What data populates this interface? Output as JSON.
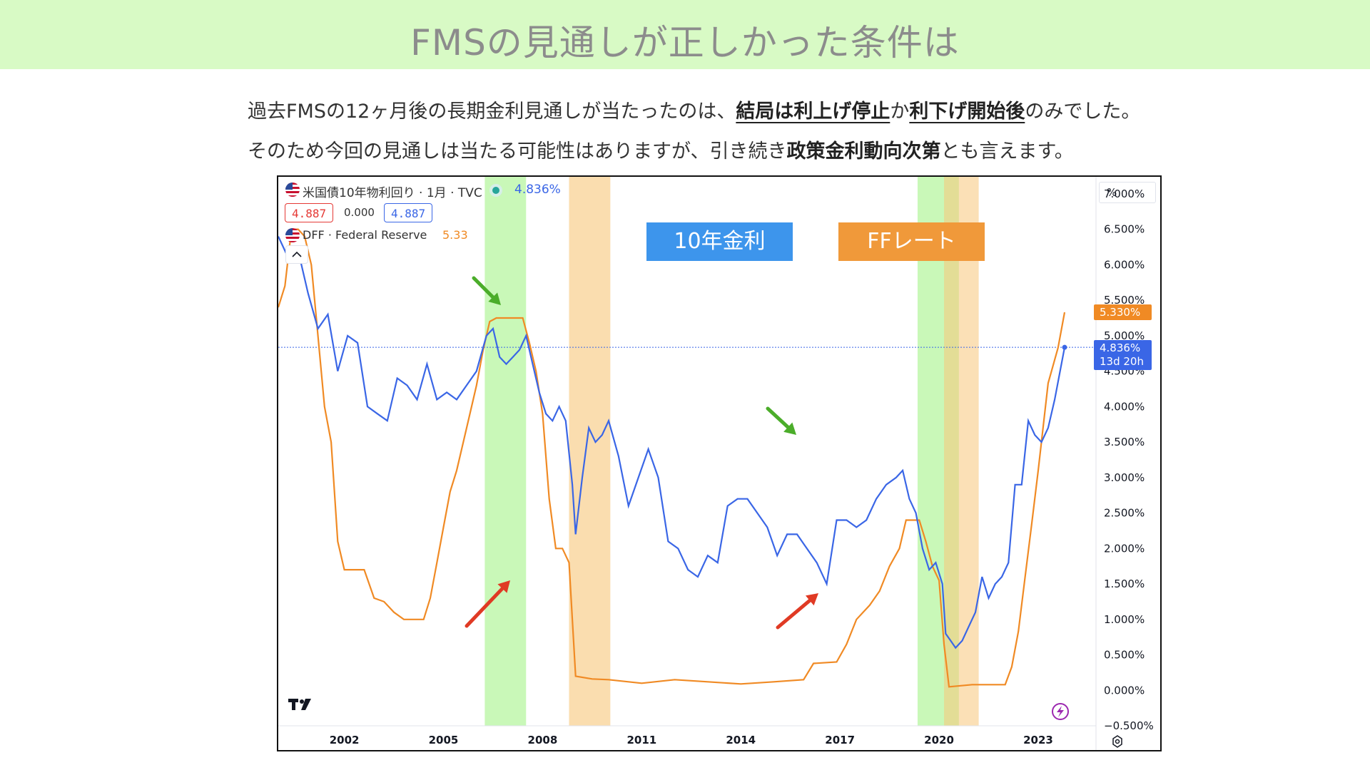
{
  "header": {
    "title": "FMSの見通しが正しかった条件は"
  },
  "description": {
    "line1_a": "過去FMSの12ヶ月後の長期金利見通しが当たったのは、",
    "line1_b": "結局は利上げ停止",
    "line1_c": "か",
    "line1_d": "利下げ開始後",
    "line1_e": "のみでした。",
    "line2_a": "そのため今回の見通しは当たる可能性はありますが、引き続き",
    "line2_b": "政策金利動向次第",
    "line2_c": "とも言えます。"
  },
  "legend": {
    "series1": "米国債10年物利回り · 1月 · TVC",
    "series1_value": "4.836%",
    "ohlc_open": "4.887",
    "ohlc_change": "0.000",
    "ohlc_close": "4.887",
    "series2": "DFF · Federal Reserve",
    "series2_value": "5.33",
    "collapse_icon": "chevron-up-icon"
  },
  "tags": {
    "ten_year": "10年金利",
    "ff_rate": "FFレート"
  },
  "price_labels": {
    "ff_last": "5.330%",
    "ten_last": "4.836%",
    "countdown": "13d 20h"
  },
  "axis": {
    "unit": "%"
  },
  "colors": {
    "ten_year": "#3a66e6",
    "ff": "#f08a24",
    "tag_blue": "#3d95ec",
    "tag_orange": "#f0993a",
    "green_band": "#9df27d",
    "orange_band": "#f7c77a",
    "green_arrow": "#4bad2a",
    "red_arrow": "#e03a24"
  },
  "chart_data": {
    "type": "line",
    "ylim": [
      -0.5,
      7.2
    ],
    "yticks": [
      "7.000%",
      "6.500%",
      "6.000%",
      "5.500%",
      "5.000%",
      "4.500%",
      "4.000%",
      "3.500%",
      "3.000%",
      "2.500%",
      "2.000%",
      "1.500%",
      "1.000%",
      "0.500%",
      "0.000%",
      "−0.500%"
    ],
    "xticks": [
      "2002",
      "2005",
      "2008",
      "2011",
      "2014",
      "2017",
      "2020",
      "2023"
    ],
    "xlim": [
      2000.0,
      2024.75
    ],
    "grid": false,
    "series": [
      {
        "name": "米国債10年物利回り",
        "x": [
          2000.0,
          2000.3,
          2000.6,
          2000.9,
          2001.2,
          2001.5,
          2001.8,
          2002.1,
          2002.4,
          2002.7,
          2003.0,
          2003.3,
          2003.6,
          2003.9,
          2004.2,
          2004.5,
          2004.8,
          2005.1,
          2005.4,
          2005.7,
          2006.0,
          2006.3,
          2006.5,
          2006.7,
          2006.9,
          2007.1,
          2007.3,
          2007.5,
          2007.7,
          2007.9,
          2008.1,
          2008.3,
          2008.5,
          2008.7,
          2008.9,
          2009.0,
          2009.2,
          2009.4,
          2009.6,
          2009.8,
          2010.0,
          2010.3,
          2010.6,
          2010.9,
          2011.2,
          2011.5,
          2011.8,
          2012.1,
          2012.4,
          2012.7,
          2013.0,
          2013.3,
          2013.6,
          2013.9,
          2014.2,
          2014.5,
          2014.8,
          2015.1,
          2015.4,
          2015.7,
          2016.0,
          2016.3,
          2016.6,
          2016.9,
          2017.2,
          2017.5,
          2017.8,
          2018.1,
          2018.4,
          2018.7,
          2018.9,
          2019.1,
          2019.3,
          2019.5,
          2019.7,
          2019.9,
          2020.1,
          2020.2,
          2020.35,
          2020.5,
          2020.7,
          2020.9,
          2021.1,
          2021.3,
          2021.5,
          2021.7,
          2021.9,
          2022.1,
          2022.3,
          2022.5,
          2022.7,
          2022.9,
          2023.1,
          2023.3,
          2023.5,
          2023.8
        ],
        "values": [
          6.4,
          6.1,
          6.2,
          5.6,
          5.1,
          5.3,
          4.5,
          5.0,
          4.9,
          4.0,
          3.9,
          3.8,
          4.4,
          4.3,
          4.1,
          4.6,
          4.1,
          4.2,
          4.1,
          4.3,
          4.5,
          5.0,
          5.1,
          4.7,
          4.6,
          4.7,
          4.8,
          5.0,
          4.6,
          4.2,
          3.9,
          3.8,
          4.0,
          3.8,
          2.9,
          2.2,
          3.0,
          3.7,
          3.5,
          3.6,
          3.8,
          3.3,
          2.6,
          3.0,
          3.4,
          3.0,
          2.1,
          2.0,
          1.7,
          1.6,
          1.9,
          1.8,
          2.6,
          2.7,
          2.7,
          2.5,
          2.3,
          1.9,
          2.2,
          2.2,
          2.0,
          1.8,
          1.5,
          2.4,
          2.4,
          2.3,
          2.4,
          2.7,
          2.9,
          3.0,
          3.1,
          2.7,
          2.5,
          2.0,
          1.7,
          1.8,
          1.5,
          0.8,
          0.7,
          0.6,
          0.7,
          0.9,
          1.1,
          1.6,
          1.3,
          1.5,
          1.6,
          1.8,
          2.9,
          2.9,
          3.8,
          3.6,
          3.5,
          3.7,
          4.1,
          4.836
        ]
      },
      {
        "name": "FFレート",
        "x": [
          2000.0,
          2000.2,
          2000.4,
          2000.6,
          2000.8,
          2001.0,
          2001.2,
          2001.4,
          2001.6,
          2001.8,
          2002.0,
          2002.3,
          2002.6,
          2002.9,
          2003.2,
          2003.5,
          2003.8,
          2004.1,
          2004.4,
          2004.6,
          2004.8,
          2005.0,
          2005.2,
          2005.4,
          2005.6,
          2005.8,
          2006.0,
          2006.2,
          2006.4,
          2006.6,
          2007.0,
          2007.4,
          2007.6,
          2007.8,
          2008.0,
          2008.2,
          2008.4,
          2008.6,
          2008.8,
          2008.9,
          2009.0,
          2009.5,
          2010.0,
          2011.0,
          2012.0,
          2013.0,
          2014.0,
          2015.0,
          2015.9,
          2016.2,
          2016.9,
          2017.2,
          2017.5,
          2017.9,
          2018.2,
          2018.5,
          2018.8,
          2019.0,
          2019.4,
          2019.6,
          2019.8,
          2020.0,
          2020.15,
          2020.3,
          2021.0,
          2022.0,
          2022.2,
          2022.4,
          2022.6,
          2022.8,
          2023.0,
          2023.3,
          2023.6,
          2023.8
        ],
        "values": [
          5.4,
          5.7,
          6.5,
          6.5,
          6.4,
          6.0,
          5.0,
          4.0,
          3.5,
          2.1,
          1.7,
          1.7,
          1.7,
          1.3,
          1.25,
          1.1,
          1.0,
          1.0,
          1.0,
          1.3,
          1.8,
          2.3,
          2.8,
          3.1,
          3.5,
          3.9,
          4.3,
          4.8,
          5.2,
          5.25,
          5.25,
          5.25,
          4.9,
          4.5,
          3.9,
          2.7,
          2.0,
          2.0,
          1.8,
          1.0,
          0.2,
          0.16,
          0.15,
          0.1,
          0.15,
          0.12,
          0.09,
          0.12,
          0.15,
          0.38,
          0.4,
          0.65,
          1.0,
          1.2,
          1.4,
          1.75,
          2.0,
          2.4,
          2.4,
          2.1,
          1.75,
          1.55,
          0.65,
          0.05,
          0.08,
          0.08,
          0.33,
          0.83,
          1.58,
          2.33,
          3.1,
          4.33,
          4.83,
          5.33
        ]
      }
    ]
  }
}
